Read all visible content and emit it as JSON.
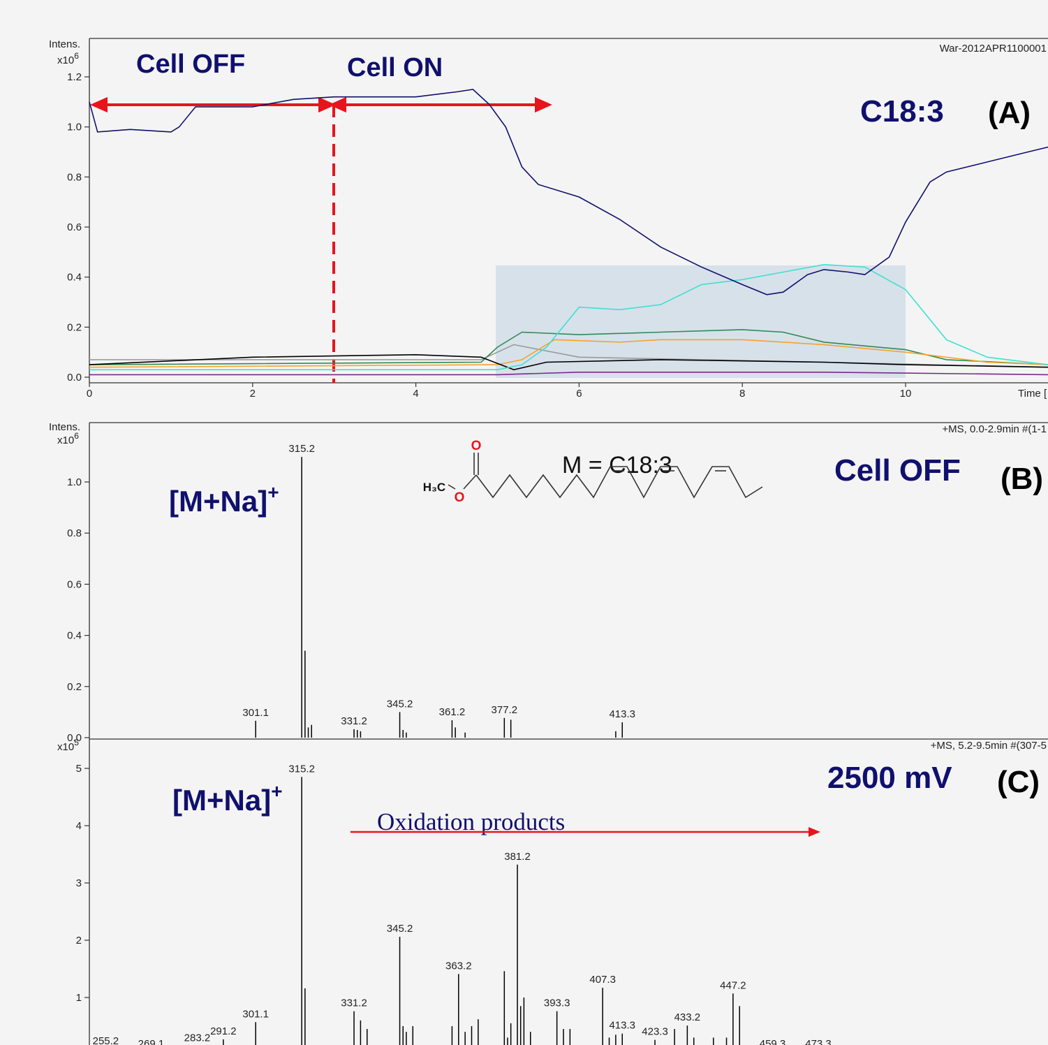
{
  "chart_data": [
    {
      "type": "line",
      "y_label": "Intens.",
      "y_unit": {
        "base": "x10",
        "exponent": "6"
      },
      "file_name": "War-2012APR1100001",
      "x_label": "Time [",
      "annotations": [
        "Cell OFF",
        "Cell ON"
      ],
      "compound": "C18:3",
      "panel": "(A)",
      "xlim": [
        0,
        11.75
      ],
      "ylim": [
        0,
        1.35
      ],
      "xticks": [
        0,
        2,
        4,
        6,
        8,
        10
      ],
      "yticks": [
        {
          "value": 0,
          "label": "0.0"
        },
        0.2,
        0.4,
        0.6,
        0.8,
        {
          "value": 1,
          "label": "1.0"
        },
        1.2
      ],
      "series": [
        {
          "color": "#9a9a9a",
          "x": [
            0,
            4.8,
            5.2,
            6,
            9,
            11.75
          ],
          "values": [
            0.07,
            0.07,
            0.13,
            0.08,
            0.06,
            0.04
          ]
        },
        {
          "color": "#7a2a8a",
          "x": [
            0,
            5,
            6,
            9,
            11.75
          ],
          "values": [
            0.01,
            0.01,
            0.02,
            0.02,
            0.01
          ]
        },
        {
          "color": "#2e8b57",
          "x": [
            0,
            4.8,
            5.0,
            5.3,
            6,
            7,
            8,
            8.5,
            9,
            10,
            10.5,
            11.75
          ],
          "values": [
            0.05,
            0.06,
            0.12,
            0.18,
            0.17,
            0.18,
            0.19,
            0.18,
            0.14,
            0.11,
            0.07,
            0.05
          ]
        },
        {
          "color": "#f5a32a",
          "x": [
            0,
            5,
            5.3,
            5.7,
            6.5,
            7,
            8,
            9,
            10,
            11,
            11.75
          ],
          "values": [
            0.04,
            0.05,
            0.07,
            0.15,
            0.14,
            0.15,
            0.15,
            0.13,
            0.1,
            0.06,
            0.05
          ]
        },
        {
          "color": "#000000",
          "x": [
            0,
            2,
            4,
            4.8,
            5.2,
            5.6,
            7,
            9,
            10,
            11.75
          ],
          "values": [
            0.05,
            0.08,
            0.09,
            0.08,
            0.03,
            0.06,
            0.07,
            0.06,
            0.05,
            0.04
          ]
        },
        {
          "color": "#40e0d0",
          "x": [
            0,
            5,
            5.3,
            5.6,
            6,
            6.5,
            7,
            7.5,
            8,
            8.5,
            9,
            9.5,
            10,
            10.5,
            11,
            11.75
          ],
          "values": [
            0.03,
            0.03,
            0.05,
            0.12,
            0.28,
            0.27,
            0.29,
            0.37,
            0.39,
            0.42,
            0.45,
            0.44,
            0.35,
            0.15,
            0.08,
            0.05
          ]
        },
        {
          "color": "#10106e",
          "x": [
            0,
            0.1,
            0.5,
            1,
            1.1,
            1.3,
            2,
            2.5,
            3,
            3.5,
            4,
            4.5,
            4.7,
            4.9,
            5.1,
            5.3,
            5.5,
            6,
            6.5,
            7,
            7.5,
            8,
            8.3,
            8.5,
            8.8,
            9,
            9.3,
            9.5,
            9.8,
            10,
            10.3,
            10.5,
            11,
            11.5,
            11.75
          ],
          "values": [
            1.1,
            0.98,
            0.99,
            0.98,
            1.0,
            1.08,
            1.08,
            1.11,
            1.12,
            1.12,
            1.12,
            1.14,
            1.15,
            1.09,
            1.0,
            0.84,
            0.77,
            0.72,
            0.63,
            0.52,
            0.44,
            0.37,
            0.33,
            0.34,
            0.41,
            0.43,
            0.42,
            0.41,
            0.48,
            0.62,
            0.78,
            0.82,
            0.86,
            0.9,
            0.92
          ]
        }
      ]
    },
    {
      "type": "stem",
      "y_label": "Intens.",
      "y_unit": {
        "base": "x10",
        "exponent": "6"
      },
      "scan_info": "+MS, 0.0-2.9min #(1-1",
      "ion_label": {
        "text": "[M+Na]",
        "charge": "+"
      },
      "formula": "M = C18:3",
      "structure_labels": [
        "O",
        "H₃C",
        "O"
      ],
      "condition": "Cell OFF",
      "panel": "(B)",
      "color": "#000000",
      "xlim": [
        250.2,
        543.6
      ],
      "ylim": [
        0,
        1.23
      ],
      "yticks": [
        {
          "value": 0,
          "label": "0.0"
        },
        0.2,
        0.4,
        0.6,
        0.8,
        {
          "value": 1,
          "label": "1.0"
        }
      ],
      "x": [
        301.1,
        315.2,
        316.2,
        317.2,
        318.2,
        331.2,
        332.2,
        333.2,
        345.2,
        346.2,
        347.2,
        361.2,
        362.2,
        365.2,
        377.2,
        379.2,
        411.3,
        413.3
      ],
      "values": [
        0.066,
        1.098,
        0.34,
        0.04,
        0.05,
        0.033,
        0.03,
        0.025,
        0.1,
        0.03,
        0.02,
        0.068,
        0.04,
        0.02,
        0.077,
        0.07,
        0.025,
        0.06
      ],
      "peak_labels": [
        "301.1",
        "315.2",
        null,
        null,
        null,
        "331.2",
        null,
        null,
        "345.2",
        null,
        null,
        "361.2",
        null,
        null,
        "377.2",
        null,
        null,
        "413.3"
      ]
    },
    {
      "type": "stem",
      "y_unit": {
        "base": "x10",
        "exponent": "5"
      },
      "scan_info": "+MS, 5.2-9.5min #(307-5",
      "ion_label": {
        "text": "[M+Na]",
        "charge": "+"
      },
      "condition": "2500 mV",
      "panel": "(C)",
      "annotation": "Oxidation products",
      "color": "#000000",
      "xlim": [
        250.2,
        543.6
      ],
      "ylim": [
        0,
        5.5
      ],
      "yticks": [
        1,
        2,
        3,
        4,
        5
      ],
      "x": [
        255.2,
        269.1,
        283.2,
        291.2,
        301.1,
        315.2,
        316.2,
        331.2,
        333.2,
        335.2,
        345.2,
        346.2,
        347.2,
        349.2,
        361.2,
        363.2,
        365.2,
        367.2,
        369.2,
        377.2,
        378.2,
        379.2,
        381.2,
        382.2,
        383.2,
        385.2,
        393.3,
        395.3,
        397.3,
        407.3,
        409.3,
        411.3,
        413.3,
        423.3,
        429.3,
        433.2,
        435.2,
        441.2,
        445.2,
        447.2,
        449.2,
        459.3,
        473.3
      ],
      "values": [
        0.1,
        0.05,
        0.15,
        0.27,
        0.57,
        4.85,
        1.16,
        0.76,
        0.6,
        0.45,
        2.06,
        0.5,
        0.4,
        0.5,
        0.5,
        1.41,
        0.4,
        0.5,
        0.62,
        1.46,
        0.3,
        0.55,
        3.32,
        0.85,
        1.0,
        0.4,
        0.76,
        0.45,
        0.45,
        1.17,
        0.3,
        0.35,
        0.37,
        0.26,
        0.45,
        0.51,
        0.3,
        0.3,
        0.3,
        1.07,
        0.85,
        0.05,
        0.05
      ],
      "peak_labels": [
        "255.2",
        "269.1",
        "283.2",
        "291.2",
        "301.1",
        "315.2",
        null,
        "331.2",
        null,
        null,
        "345.2",
        null,
        null,
        null,
        null,
        "363.2",
        null,
        null,
        null,
        null,
        null,
        null,
        "381.2",
        null,
        null,
        null,
        "393.3",
        null,
        null,
        "407.3",
        null,
        null,
        "413.3",
        "423.3",
        null,
        "433.2",
        null,
        null,
        null,
        "447.2",
        null,
        "459.3",
        "473.3"
      ]
    }
  ]
}
